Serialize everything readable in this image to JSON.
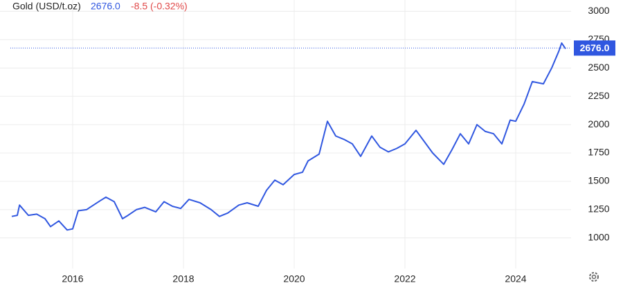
{
  "chart_data": {
    "type": "line",
    "title": "Gold (USD/t.oz)",
    "last_label": "2676.0",
    "last_value": 2676,
    "change_label": "-8.5 (-0.32%)",
    "x": [
      2014.9,
      2015.0,
      2015.04,
      2015.2,
      2015.35,
      2015.5,
      2015.6,
      2015.75,
      2015.9,
      2016.0,
      2016.1,
      2016.25,
      2016.5,
      2016.6,
      2016.75,
      2016.9,
      2017.0,
      2017.15,
      2017.3,
      2017.5,
      2017.65,
      2017.8,
      2017.95,
      2018.1,
      2018.3,
      2018.5,
      2018.65,
      2018.8,
      2019.0,
      2019.15,
      2019.35,
      2019.5,
      2019.65,
      2019.8,
      2020.0,
      2020.15,
      2020.25,
      2020.45,
      2020.6,
      2020.75,
      2020.9,
      2021.05,
      2021.2,
      2021.4,
      2021.55,
      2021.7,
      2021.85,
      2022.0,
      2022.2,
      2022.35,
      2022.5,
      2022.7,
      2022.85,
      2023.0,
      2023.15,
      2023.3,
      2023.45,
      2023.6,
      2023.75,
      2023.9,
      2024.0,
      2024.15,
      2024.3,
      2024.5,
      2024.65,
      2024.78,
      2024.83,
      2024.9
    ],
    "series": [
      {
        "name": "Gold (USD/t.oz)",
        "color": "#3057e0",
        "values": [
          1190,
          1200,
          1290,
          1200,
          1210,
          1170,
          1100,
          1150,
          1070,
          1080,
          1240,
          1250,
          1330,
          1360,
          1320,
          1170,
          1200,
          1250,
          1270,
          1230,
          1320,
          1280,
          1260,
          1340,
          1310,
          1250,
          1190,
          1220,
          1290,
          1310,
          1280,
          1420,
          1510,
          1470,
          1560,
          1580,
          1680,
          1740,
          2030,
          1900,
          1870,
          1830,
          1720,
          1900,
          1800,
          1760,
          1790,
          1830,
          1950,
          1850,
          1750,
          1650,
          1780,
          1920,
          1830,
          2000,
          1940,
          1920,
          1830,
          2040,
          2030,
          2180,
          2380,
          2360,
          2500,
          2650,
          2720,
          2670
        ]
      }
    ],
    "xlim": [
      2014.875,
      2025
    ],
    "xticks": [
      2016,
      2018,
      2020,
      2022,
      2024
    ],
    "ylim": [
      730,
      3100
    ],
    "yticks": [
      1000,
      1250,
      1500,
      1750,
      2000,
      2250,
      2500,
      2750,
      3000
    ],
    "grid": true
  }
}
